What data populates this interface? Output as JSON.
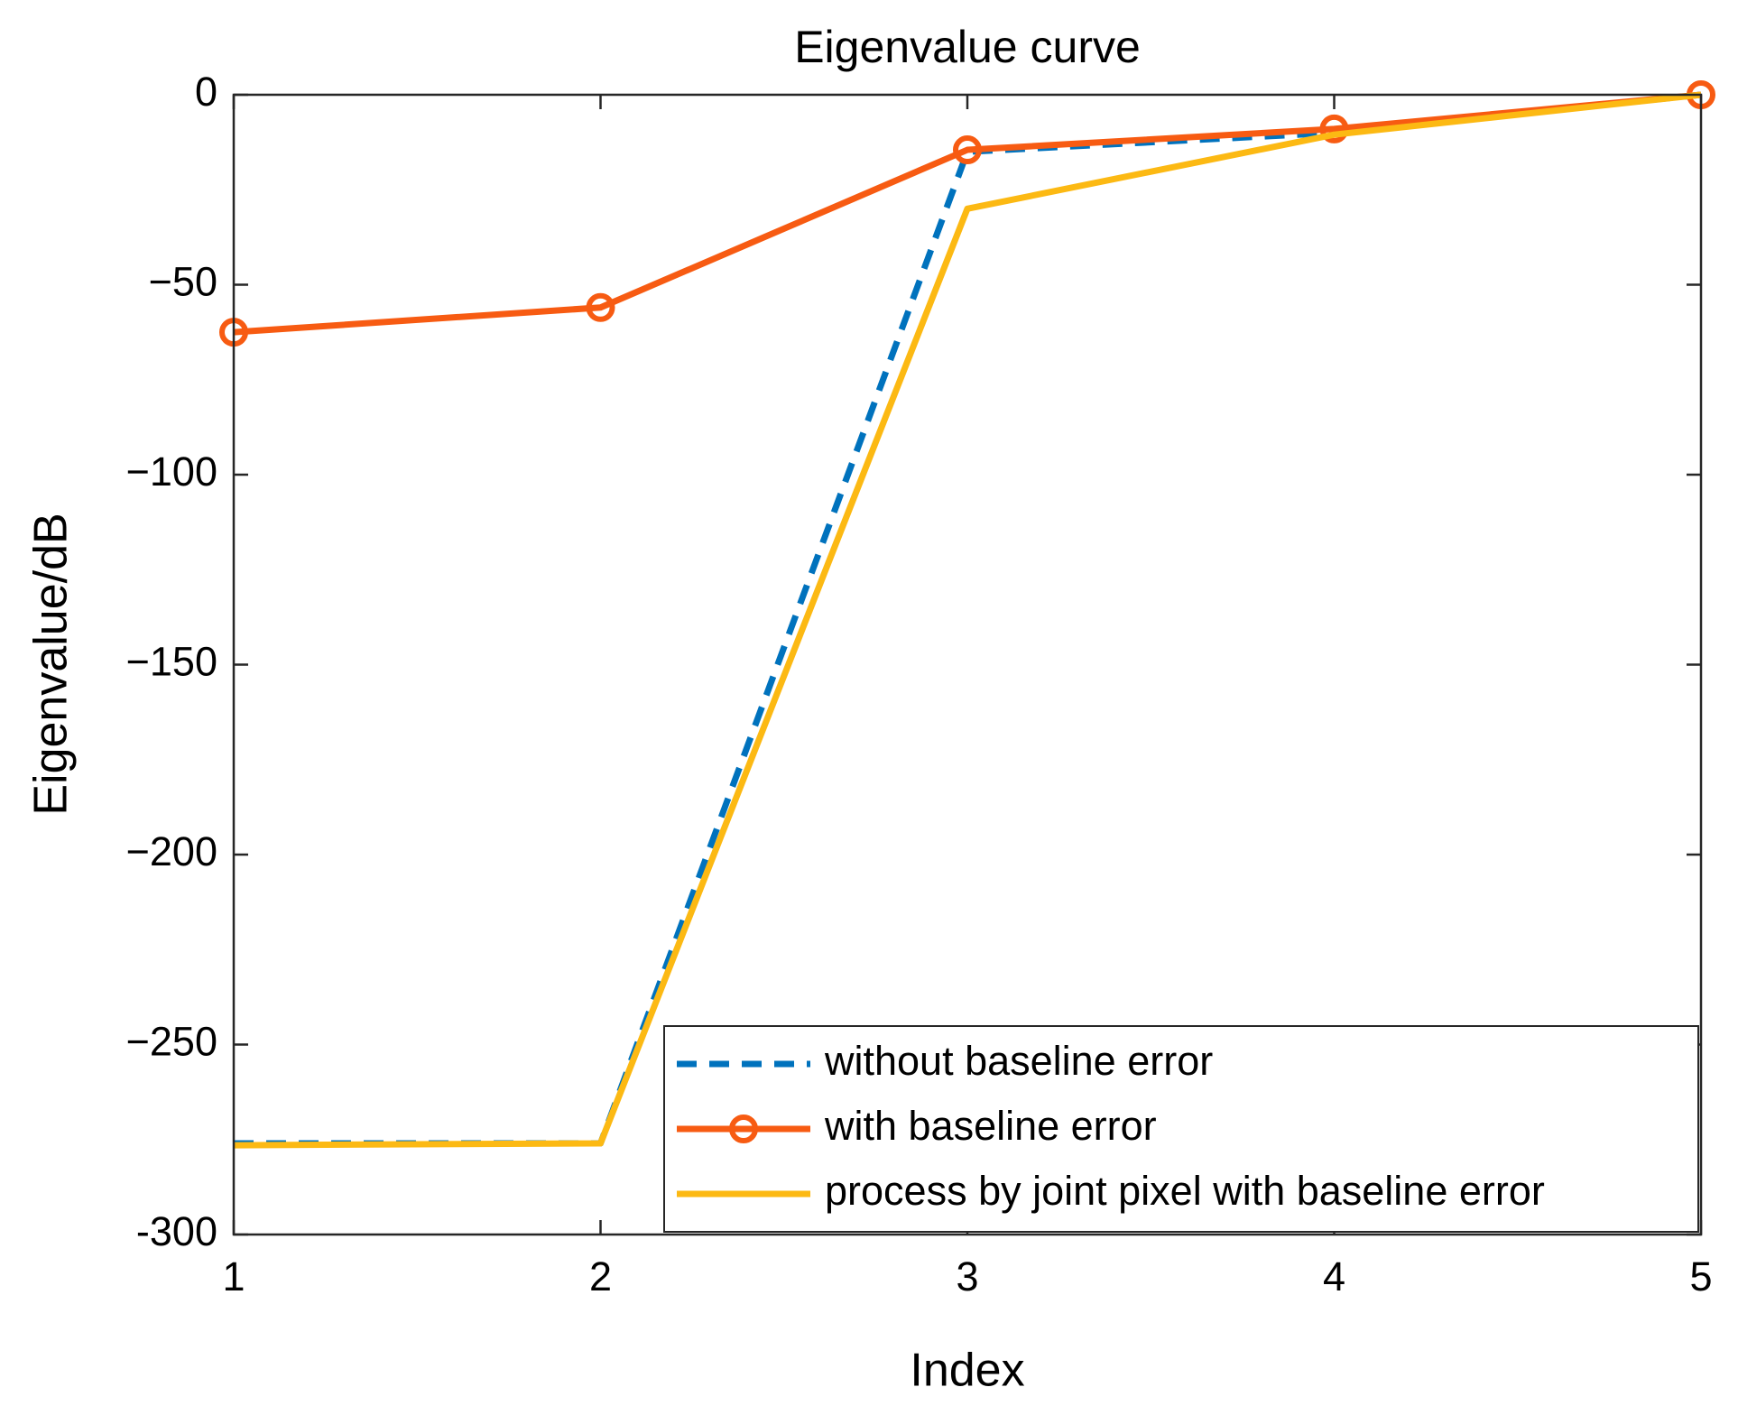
{
  "chart_data": {
    "type": "line",
    "title": "Eigenvalue curve",
    "x_label": "Index",
    "y_label": "Eigenvalue/dB",
    "x": [
      1,
      2,
      3,
      4,
      5
    ],
    "series": [
      {
        "name": "without baseline error",
        "color": "#0072bd",
        "line_style": "dashed",
        "values": [
          -276,
          -276,
          -15,
          -10,
          0
        ]
      },
      {
        "name": "with baseline error",
        "color": "#f75b12",
        "line_style": "solid",
        "marker": "circle",
        "values": [
          -62.5,
          -56,
          -14.5,
          -9,
          0
        ]
      },
      {
        "name": "process by joint pixel with baseline error",
        "color": "#fcb913",
        "line_style": "solid",
        "values": [
          -276.5,
          -276,
          -30,
          -10.5,
          0
        ]
      }
    ],
    "xlim": [
      1,
      5
    ],
    "xticks": [
      1,
      2,
      3,
      4,
      5
    ],
    "ylim": [
      -300,
      0
    ],
    "yticks": [
      -300,
      {
        "value": -250,
        "label": "−250"
      },
      {
        "value": -200,
        "label": "−200"
      },
      {
        "value": -150,
        "label": "−150"
      },
      {
        "value": -100,
        "label": "−100"
      },
      {
        "value": -50,
        "label": "−50"
      },
      0
    ],
    "grid": false,
    "legend_position": "lower right"
  }
}
